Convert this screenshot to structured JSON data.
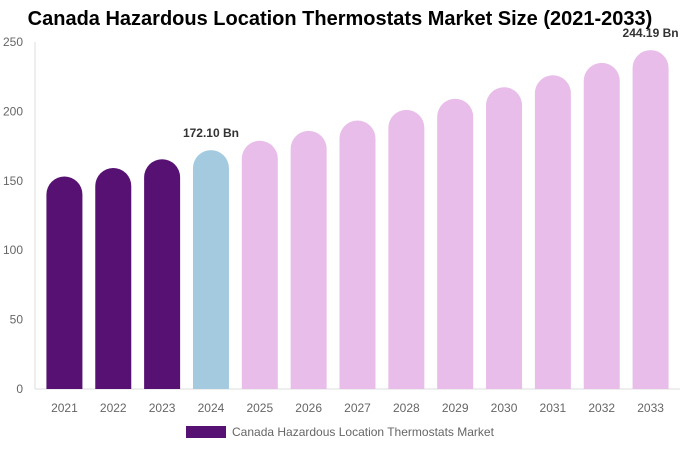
{
  "chart_data": {
    "type": "bar",
    "title": "Canada Hazardous Location Thermostats Market Size (2021-2033)",
    "categories": [
      "2021",
      "2022",
      "2023",
      "2024",
      "2025",
      "2026",
      "2027",
      "2028",
      "2029",
      "2030",
      "2031",
      "2032",
      "2033"
    ],
    "series": [
      {
        "name": "Canada Hazardous Location Thermostats Market",
        "values": [
          153.1,
          159.2,
          165.5,
          172.1,
          178.9,
          186.0,
          193.4,
          201.1,
          209.1,
          217.4,
          226.0,
          235.0,
          244.19
        ]
      }
    ],
    "data_labels": {
      "2024": "172.10 Bn",
      "2033": "244.19 Bn"
    },
    "ylim": [
      0,
      250
    ],
    "yticks": [
      0,
      50,
      100,
      150,
      200,
      250
    ],
    "grid": false,
    "legend_position": "bottom",
    "colors": {
      "historical": "#561172",
      "base_year": "#a4cadf",
      "forecast": "#e8bde9"
    },
    "color_groups": [
      "historical",
      "historical",
      "historical",
      "base_year",
      "forecast",
      "forecast",
      "forecast",
      "forecast",
      "forecast",
      "forecast",
      "forecast",
      "forecast",
      "forecast"
    ]
  }
}
